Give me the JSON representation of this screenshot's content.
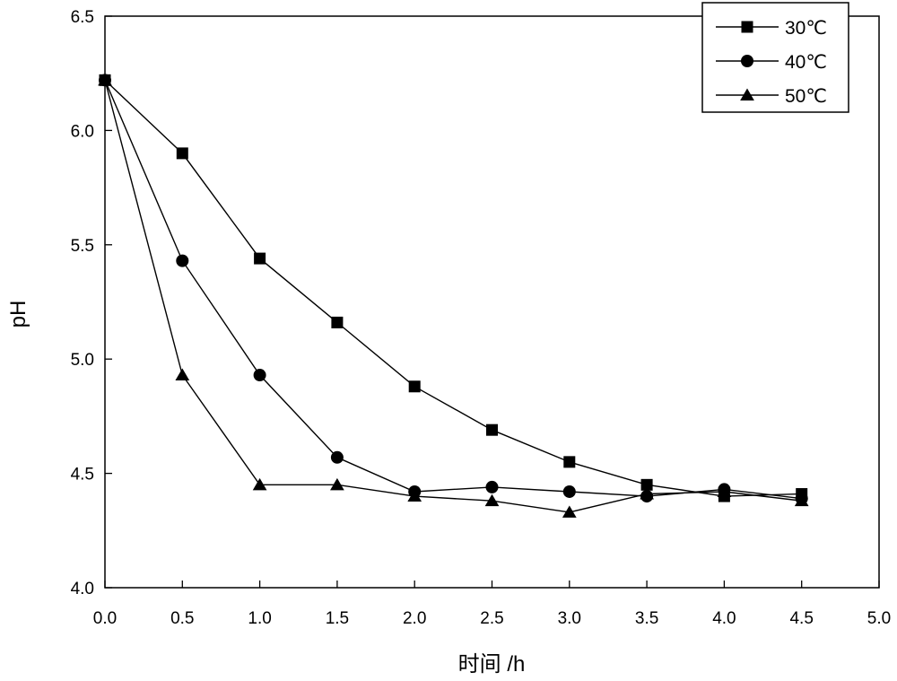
{
  "chart_data": {
    "type": "line",
    "title": "",
    "xlabel": "时间 /h",
    "ylabel": "pH",
    "xlim": [
      0,
      5
    ],
    "ylim": [
      4.0,
      6.5
    ],
    "xticks": [
      0.0,
      0.5,
      1.0,
      1.5,
      2.0,
      2.5,
      3.0,
      3.5,
      4.0,
      4.5,
      5.0
    ],
    "yticks": [
      4.0,
      4.5,
      5.0,
      5.5,
      6.0,
      6.5
    ],
    "xtick_labels": [
      "0.0",
      "0.5",
      "1.0",
      "1.5",
      "2.0",
      "2.5",
      "3.0",
      "3.5",
      "4.0",
      "4.5",
      "5.0"
    ],
    "ytick_labels": [
      "4.0",
      "4.5",
      "5.0",
      "5.5",
      "6.0",
      "6.5"
    ],
    "grid": false,
    "legend_position": "top-right",
    "x": [
      0.0,
      0.5,
      1.0,
      1.5,
      2.0,
      2.5,
      3.0,
      3.5,
      4.0,
      4.5
    ],
    "series": [
      {
        "name": "30℃",
        "marker": "square",
        "values": [
          6.22,
          5.9,
          5.44,
          5.16,
          4.88,
          4.69,
          4.55,
          4.45,
          4.4,
          4.41
        ]
      },
      {
        "name": "40℃",
        "marker": "circle",
        "values": [
          6.22,
          5.43,
          4.93,
          4.57,
          4.42,
          4.44,
          4.42,
          4.4,
          4.43,
          4.39
        ]
      },
      {
        "name": "50℃",
        "marker": "triangle",
        "values": [
          6.22,
          4.93,
          4.45,
          4.45,
          4.4,
          4.38,
          4.33,
          4.41,
          4.42,
          4.38
        ]
      }
    ]
  }
}
